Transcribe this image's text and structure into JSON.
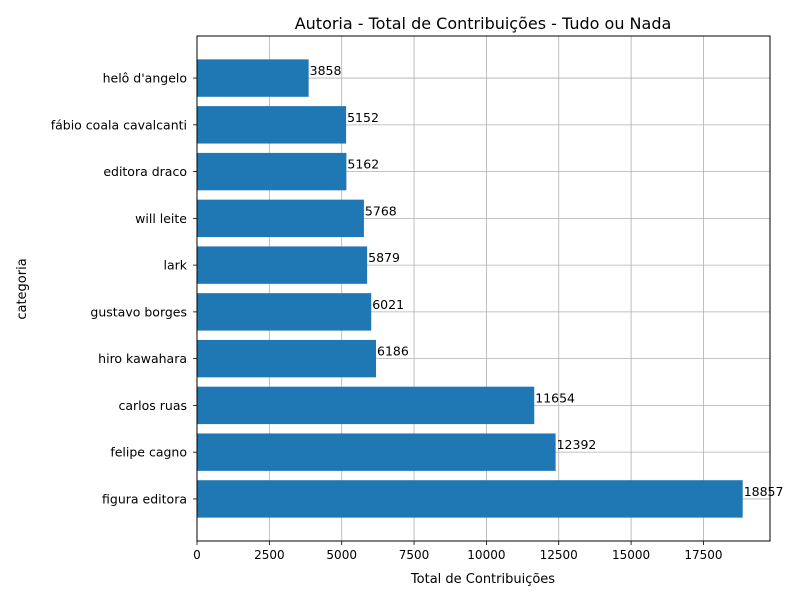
{
  "chart_data": {
    "type": "bar",
    "orientation": "horizontal",
    "title": "Autoria - Total de Contribuições - Tudo ou Nada",
    "xlabel": "Total de Contribuições",
    "ylabel": "categoria",
    "categories": [
      "figura editora",
      "felipe cagno",
      "carlos ruas",
      "hiro kawahara",
      "gustavo borges",
      "lark",
      "will leite",
      "editora draco",
      "fábio coala cavalcanti",
      "helô d'angelo"
    ],
    "values": [
      18857,
      12392,
      11654,
      6186,
      6021,
      5879,
      5768,
      5162,
      5152,
      3858
    ],
    "xlim": [
      0,
      19800
    ],
    "xticks": [
      0,
      2500,
      5000,
      7500,
      10000,
      12500,
      15000,
      17500
    ],
    "xtick_labels": [
      "0",
      "2500",
      "5000",
      "7500",
      "10000",
      "12500",
      "15000",
      "17500"
    ],
    "grid": true,
    "bar_color": "#1f77b4"
  }
}
